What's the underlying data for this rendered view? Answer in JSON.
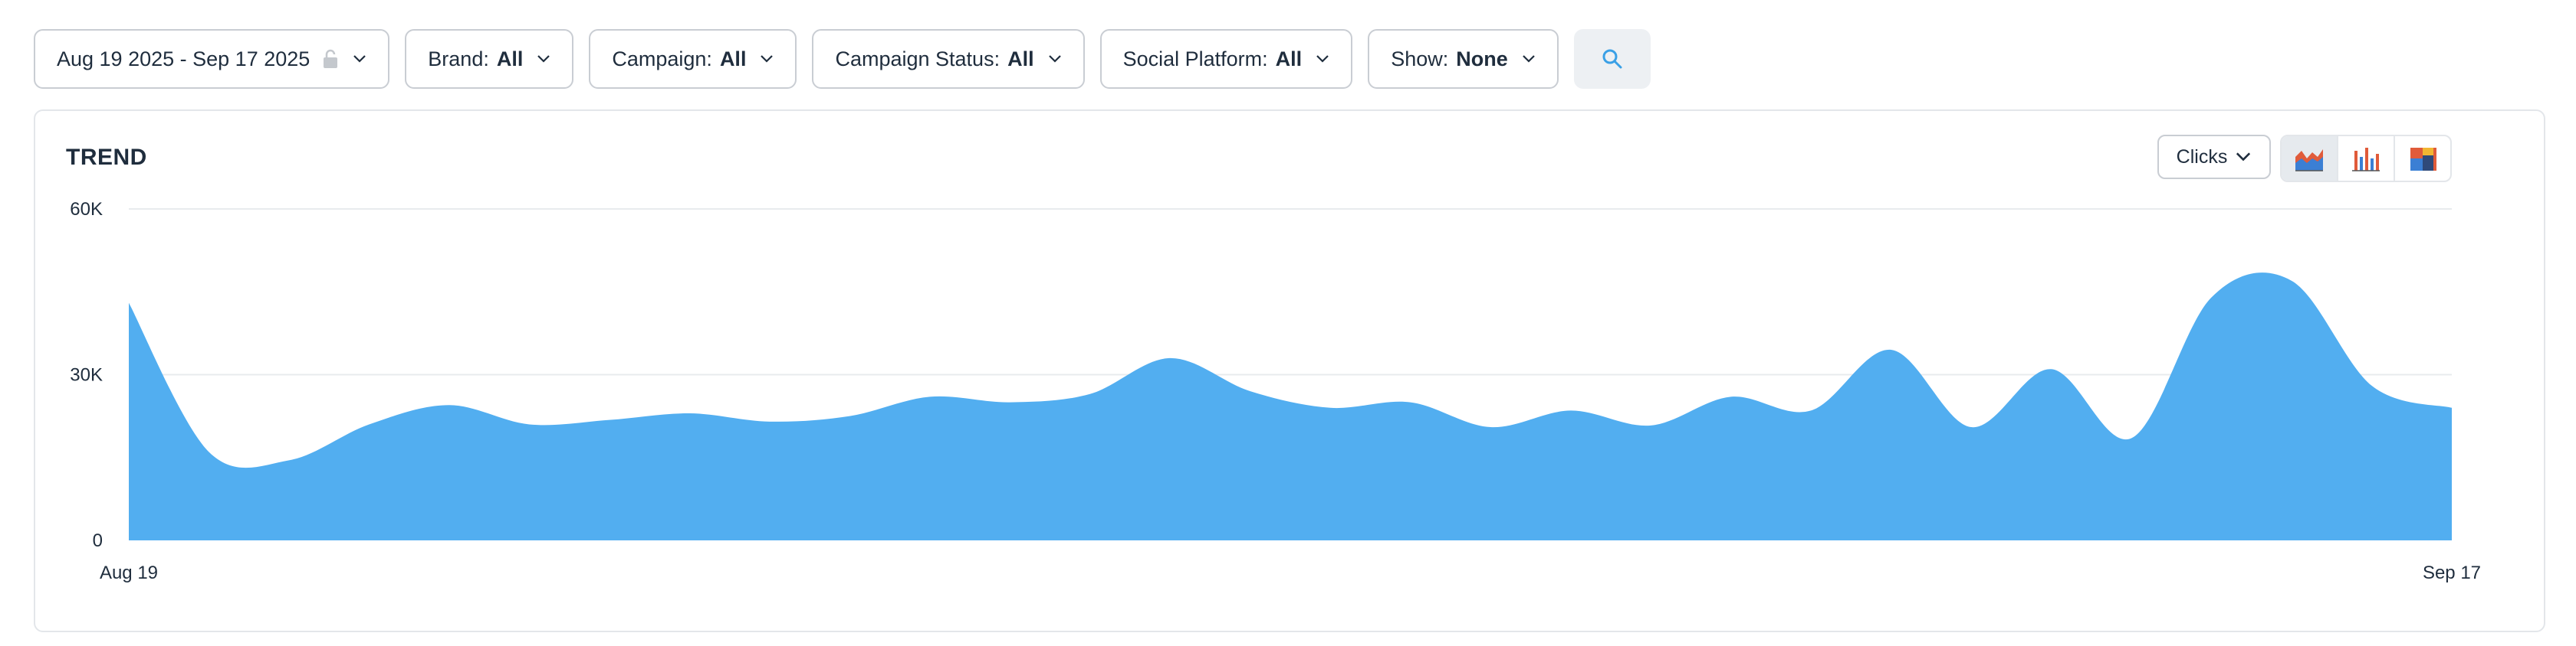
{
  "filters": {
    "date_range": "Aug 19 2025 - Sep 17 2025",
    "brand": {
      "label": "Brand:",
      "value": "All"
    },
    "campaign": {
      "label": "Campaign:",
      "value": "All"
    },
    "campaign_status": {
      "label": "Campaign Status:",
      "value": "All"
    },
    "social_platform": {
      "label": "Social Platform:",
      "value": "All"
    },
    "show": {
      "label": "Show:",
      "value": "None"
    }
  },
  "trend": {
    "title": "TREND",
    "metric": "Clicks",
    "chart_types": [
      "area-chart-icon",
      "bar-chart-icon",
      "stacked-chart-icon"
    ],
    "active_chart_type": "area"
  },
  "colors": {
    "area_fill": "#52aef0",
    "accent": "#3aa0e6",
    "grid": "#e8ebee"
  },
  "chart_data": {
    "type": "area",
    "x_tick_labels": [
      "Aug 19",
      "Sep 17"
    ],
    "y_tick_labels": [
      "0",
      "30K",
      "60K"
    ],
    "ylim": [
      0,
      60000
    ],
    "grid": true,
    "x": [
      "Aug 19",
      "Aug 20",
      "Aug 21",
      "Aug 22",
      "Aug 23",
      "Aug 24",
      "Aug 25",
      "Aug 26",
      "Aug 27",
      "Aug 28",
      "Aug 29",
      "Aug 30",
      "Aug 31",
      "Sep 1",
      "Sep 2",
      "Sep 3",
      "Sep 4",
      "Sep 5",
      "Sep 6",
      "Sep 7",
      "Sep 8",
      "Sep 9",
      "Sep 10",
      "Sep 11",
      "Sep 12",
      "Sep 13",
      "Sep 14",
      "Sep 15",
      "Sep 16",
      "Sep 17"
    ],
    "series": [
      {
        "values": [
          43000,
          16000,
          14500,
          21000,
          24500,
          21000,
          21800,
          23000,
          21500,
          22500,
          26000,
          25000,
          26500,
          33000,
          27000,
          24000,
          25000,
          20500,
          23500,
          20800,
          26000,
          23500,
          34500,
          20500,
          31000,
          18500,
          44000,
          47000,
          28000,
          24000
        ]
      }
    ]
  }
}
